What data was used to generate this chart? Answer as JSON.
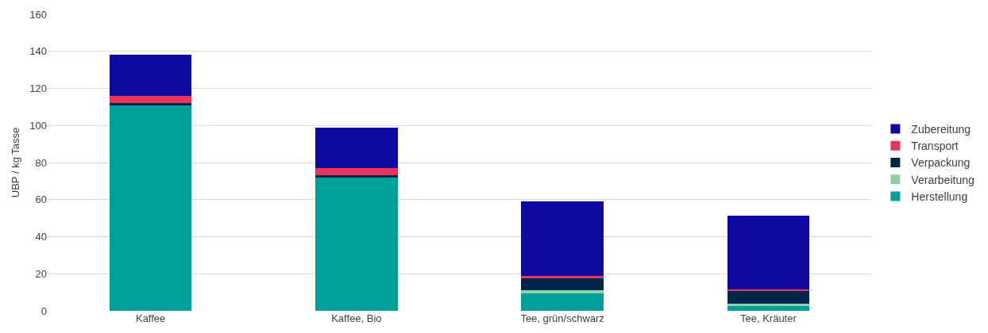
{
  "chart_data": {
    "type": "bar",
    "stacked": true,
    "ylabel": "UBP / kg Tasse",
    "categories": [
      "Kaffee",
      "Kaffee, Bio",
      "Tee, grün/schwarz",
      "Tee, Kräuter"
    ],
    "series": [
      {
        "name": "Herstellung",
        "color": "#009e9b",
        "values": [
          111,
          72,
          9.5,
          2.5
        ]
      },
      {
        "name": "Verarbeitung",
        "color": "#8fd0a8",
        "values": [
          null,
          null,
          1.5,
          1.5
        ]
      },
      {
        "name": "Verpackung",
        "color": "#00264a",
        "values": [
          1,
          1,
          6.5,
          6.5
        ]
      },
      {
        "name": "Transport",
        "color": "#e8335a",
        "values": [
          4,
          4,
          1.5,
          1
        ]
      },
      {
        "name": "Zubereitung",
        "color": "#0e0aa0",
        "values": [
          22,
          22,
          40,
          40
        ]
      }
    ],
    "ylim": [
      0,
      160
    ],
    "yticks": [
      0,
      20,
      40,
      60,
      80,
      100,
      120,
      140,
      160
    ],
    "grid": "y",
    "legend": "right"
  }
}
